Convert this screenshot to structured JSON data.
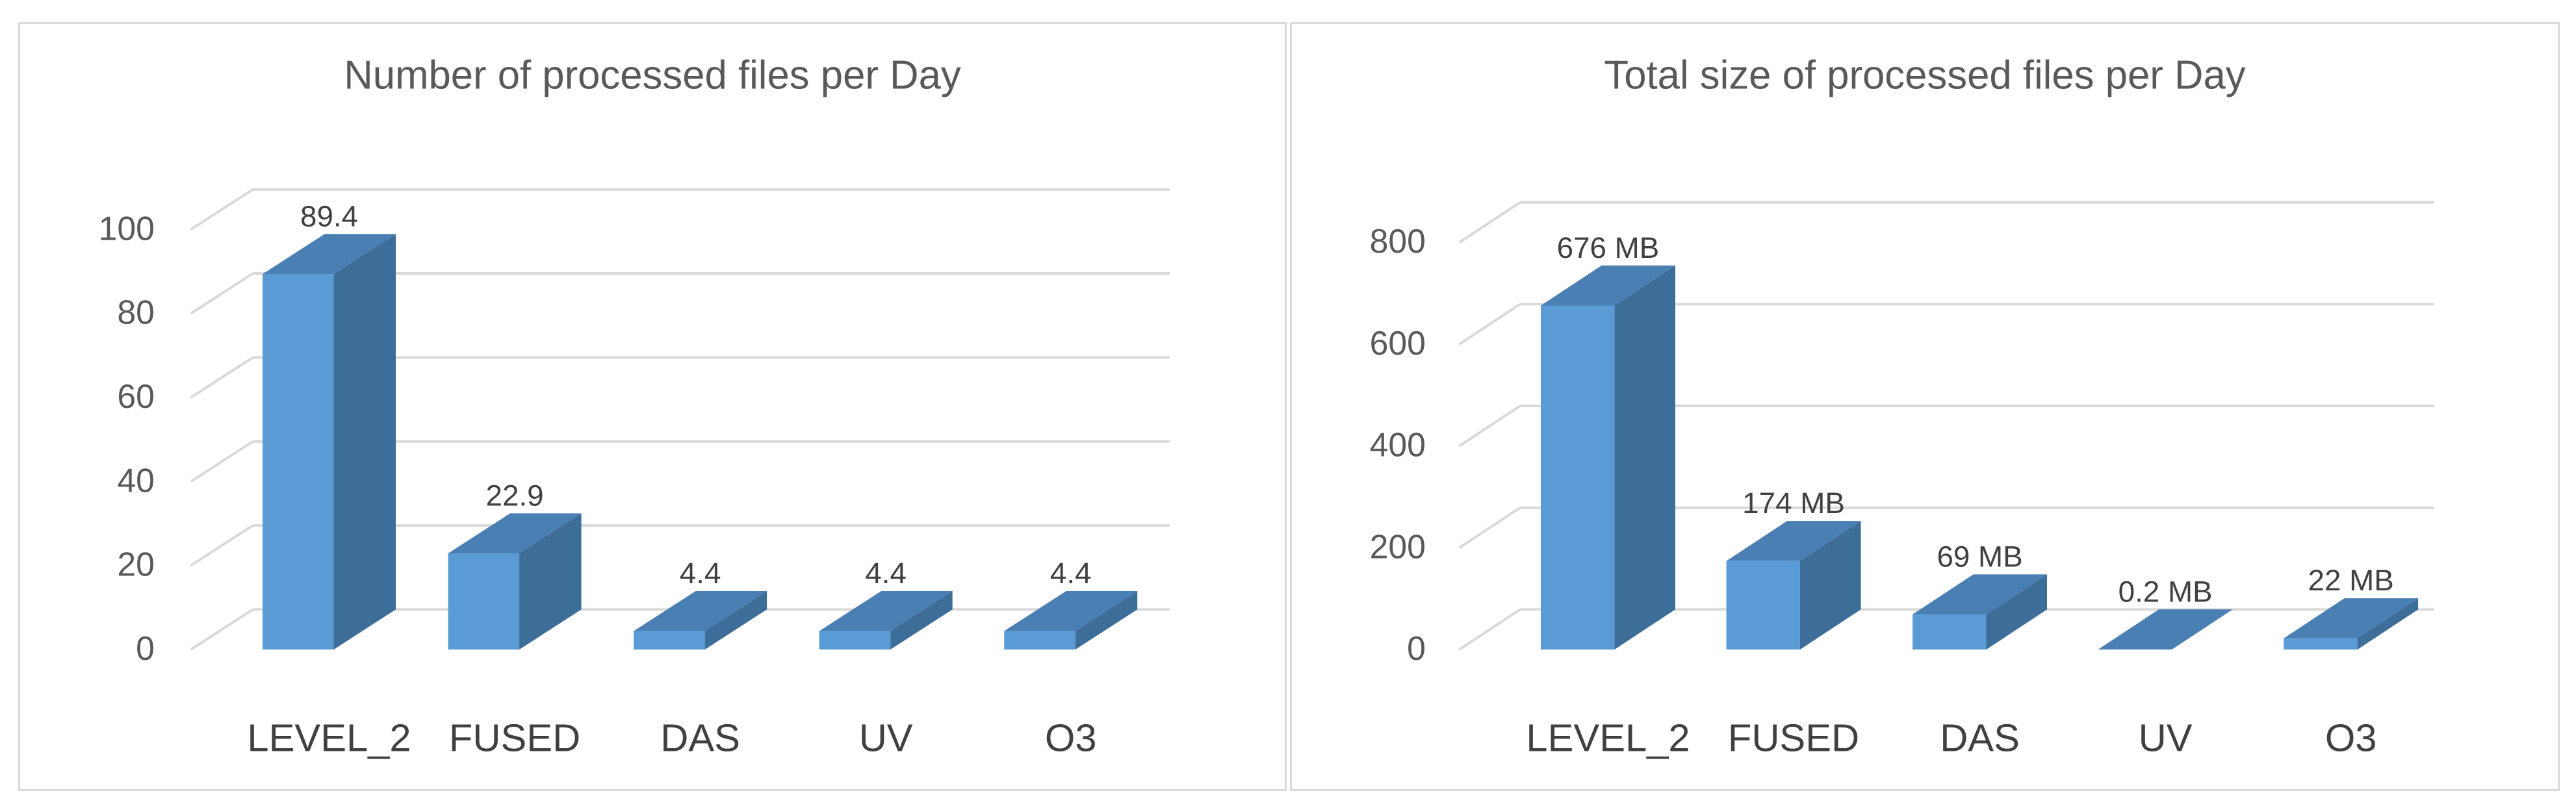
{
  "colors": {
    "bar_front": "#5b9bd5",
    "bar_side": "#3d6d99",
    "bar_top": "#4a7fb3",
    "grid": "#d9d9d9",
    "text": "#595959"
  },
  "chart_data": [
    {
      "type": "bar",
      "title": "Number of processed files per Day",
      "categories": [
        "LEVEL_2",
        "FUSED",
        "DAS",
        "UV",
        "O3"
      ],
      "values": [
        89.4,
        22.9,
        4.4,
        4.4,
        4.4
      ],
      "data_labels": [
        "89.4",
        "22.9",
        "4.4",
        "4.4",
        "4.4"
      ],
      "yticks": [
        "0",
        "20",
        "40",
        "60",
        "80",
        "100"
      ],
      "ylim": [
        0,
        100
      ],
      "xlabel": "",
      "ylabel": "",
      "grid": true,
      "three_d": true
    },
    {
      "type": "bar",
      "title": "Total size of processed files per Day",
      "categories": [
        "LEVEL_2",
        "FUSED",
        "DAS",
        "UV",
        "O3"
      ],
      "values": [
        676,
        174,
        69,
        0.2,
        22
      ],
      "data_labels": [
        "676 MB",
        "174 MB",
        "69 MB",
        "0.2 MB",
        "22 MB"
      ],
      "yticks": [
        "0",
        "200",
        "400",
        "600",
        "800"
      ],
      "ylim": [
        0,
        800
      ],
      "xlabel": "",
      "ylabel": "",
      "grid": true,
      "three_d": true
    }
  ]
}
